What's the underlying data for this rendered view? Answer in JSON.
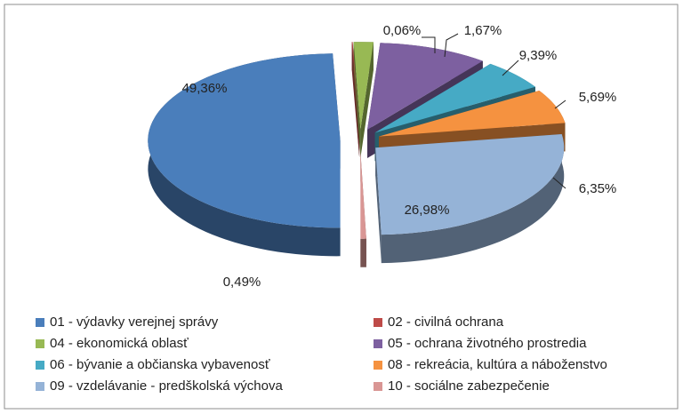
{
  "chart_data": {
    "type": "pie",
    "categories": [
      "01 - výdavky verejnej správy",
      "02 - civilná ochrana",
      "04 - ekonomická oblasť",
      "05 - ochrana životného prostredia",
      "06 - bývanie a občianska vybavenosť",
      "08 - rekreácia, kultúra a náboženstvo",
      "09 - vzdelávanie - predškolská výchova",
      "10 - sociálne zabezpečenie"
    ],
    "values": [
      49.36,
      0.06,
      1.67,
      9.39,
      5.69,
      6.35,
      26.98,
      0.49
    ],
    "value_labels": [
      "49,36%",
      "0,06%",
      "1,67%",
      "9,39%",
      "5,69%",
      "6,35%",
      "26,98%",
      "0,49%"
    ],
    "colors": [
      "#4a7ebb",
      "#be4b48",
      "#98b954",
      "#7d60a0",
      "#46aac5",
      "#f59240",
      "#95b3d7",
      "#d99694"
    ]
  }
}
